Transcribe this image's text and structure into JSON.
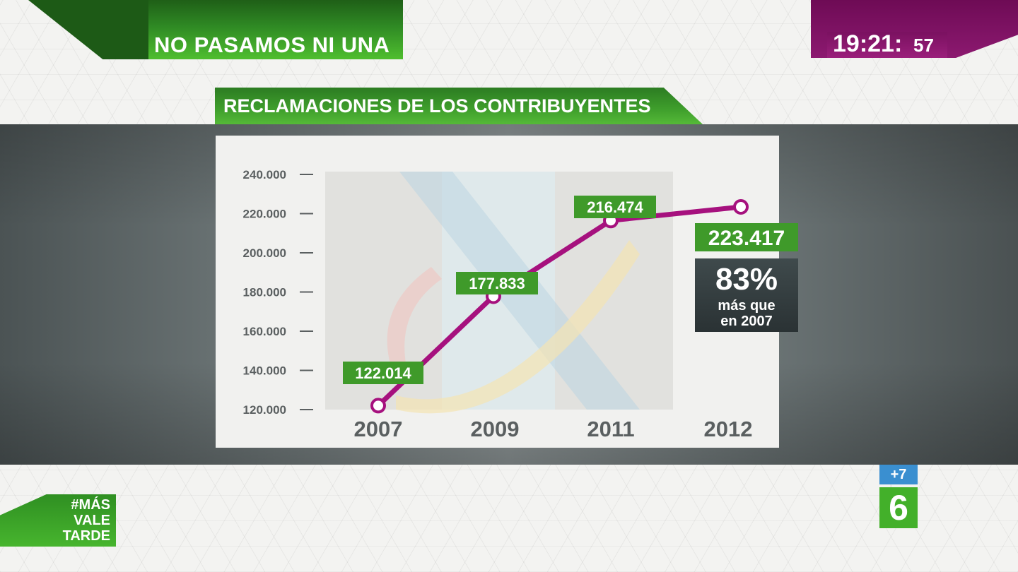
{
  "header": {
    "headline": "NO PASAMOS NI UNA"
  },
  "clock": {
    "time": "19:21:",
    "seconds": "57"
  },
  "chart_data": {
    "type": "line",
    "title": "RECLAMACIONES DE LOS CONTRIBUYENTES",
    "categories": [
      "2007",
      "2009",
      "2011",
      "2012"
    ],
    "values": [
      122014,
      177833,
      216474,
      223417
    ],
    "value_labels": [
      "122.014",
      "177.833",
      "216.474",
      "223.417"
    ],
    "y_ticks": [
      120000,
      140000,
      160000,
      180000,
      200000,
      220000,
      240000
    ],
    "y_tick_labels": [
      "120.000",
      "140.000",
      "160.000",
      "180.000",
      "200.000",
      "220.000",
      "240.000"
    ],
    "ylim": [
      120000,
      240000
    ],
    "xlabel": "",
    "ylabel": "",
    "grid": false,
    "colors": {
      "line": "#a6117e",
      "label_bg": "#3f9a2a",
      "label_text": "#ffffff"
    }
  },
  "stat": {
    "percent": "83%",
    "line1": "más que",
    "line2": "en 2007"
  },
  "hashtag": {
    "line1": "#MÁS",
    "line2": "VALE",
    "line3": "TARDE"
  },
  "logo": {
    "plus": "+7",
    "channel": "6"
  }
}
